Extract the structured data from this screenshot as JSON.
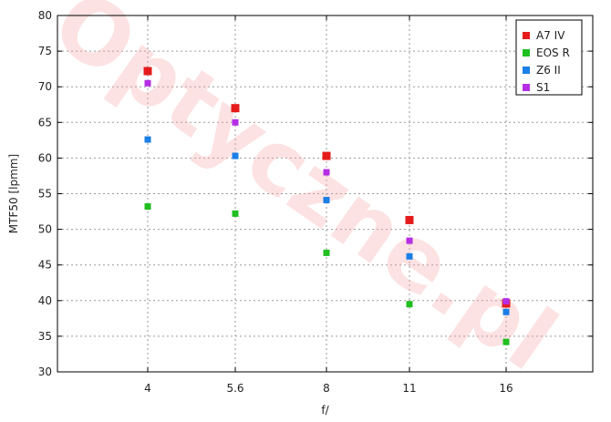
{
  "chart_data": {
    "type": "scatter",
    "x_categories": [
      "4",
      "5.6",
      "8",
      "11",
      "16"
    ],
    "xlabel": "f/",
    "ylabel": "MTF50 [lpmm]",
    "ylim": [
      30,
      80
    ],
    "yticks": [
      30,
      35,
      40,
      45,
      50,
      55,
      60,
      65,
      70,
      75,
      80
    ],
    "grid": true,
    "legend_position": "top-right",
    "watermark": "Optyczne.pl",
    "series": [
      {
        "name": "A7 IV",
        "color": "#e51b1b",
        "marker_size": "large",
        "values": [
          72.2,
          67.0,
          60.3,
          51.3,
          39.6
        ]
      },
      {
        "name": "EOS R",
        "color": "#1fbf1f",
        "marker_size": "small",
        "values": [
          53.2,
          52.2,
          46.7,
          39.5,
          34.2
        ]
      },
      {
        "name": "Z6 II",
        "color": "#1a7fe6",
        "marker_size": "small",
        "values": [
          62.6,
          60.3,
          54.1,
          46.2,
          38.4
        ]
      },
      {
        "name": "S1",
        "color": "#b52ee6",
        "marker_size": "small",
        "values": [
          70.5,
          65.0,
          58.0,
          48.4,
          39.9
        ]
      }
    ]
  }
}
